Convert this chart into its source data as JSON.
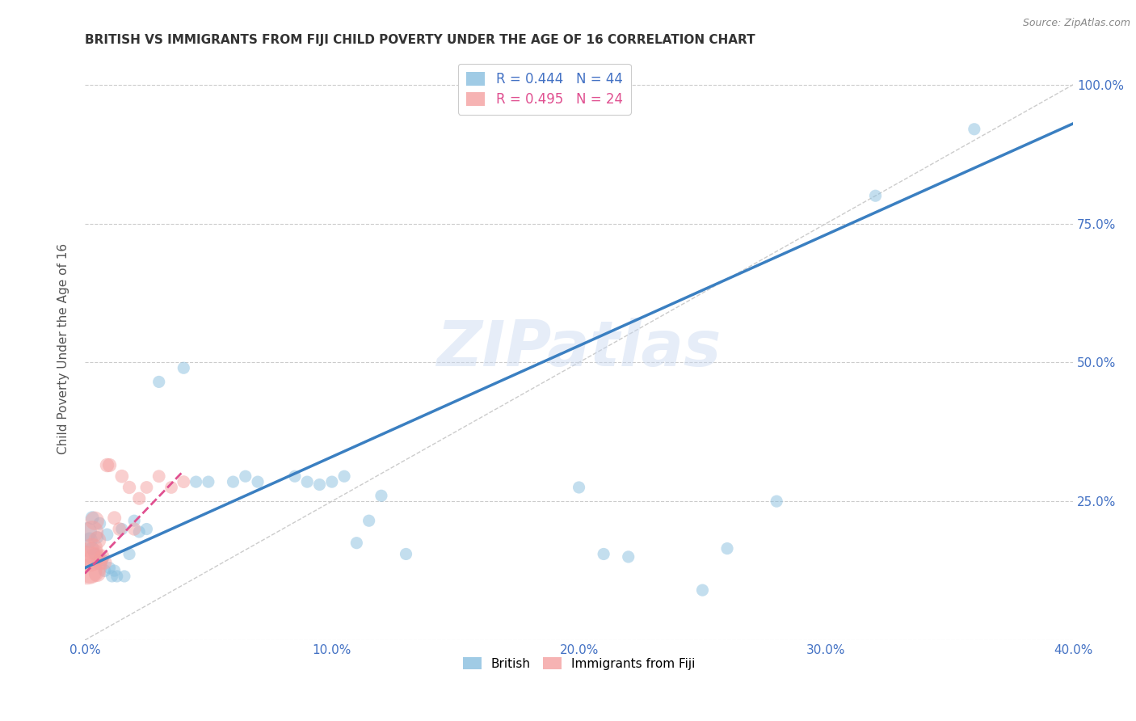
{
  "title": "BRITISH VS IMMIGRANTS FROM FIJI CHILD POVERTY UNDER THE AGE OF 16 CORRELATION CHART",
  "source": "Source: ZipAtlas.com",
  "ylabel": "Child Poverty Under the Age of 16",
  "xlim": [
    0.0,
    0.4
  ],
  "ylim": [
    0.0,
    1.05
  ],
  "xticks": [
    0.0,
    0.05,
    0.1,
    0.15,
    0.2,
    0.25,
    0.3,
    0.35,
    0.4
  ],
  "xticklabels": [
    "0.0%",
    "",
    "10.0%",
    "",
    "20.0%",
    "",
    "30.0%",
    "",
    "40.0%"
  ],
  "yticks": [
    0.0,
    0.25,
    0.5,
    0.75,
    1.0
  ],
  "yticklabels": [
    "",
    "25.0%",
    "50.0%",
    "75.0%",
    "100.0%"
  ],
  "british_color": "#89bfdf",
  "fiji_color": "#f4a0a0",
  "british_R": 0.444,
  "british_N": 44,
  "fiji_R": 0.495,
  "fiji_N": 24,
  "watermark": "ZIPatlas",
  "brit_line_color": "#3a7fc1",
  "fiji_line_color": "#e05090",
  "ref_line_color": "#cccccc",
  "brit_x": [
    0.001,
    0.002,
    0.003,
    0.003,
    0.004,
    0.005,
    0.006,
    0.007,
    0.008,
    0.009,
    0.01,
    0.011,
    0.012,
    0.013,
    0.015,
    0.016,
    0.018,
    0.02,
    0.022,
    0.025,
    0.03,
    0.04,
    0.045,
    0.05,
    0.06,
    0.065,
    0.07,
    0.085,
    0.09,
    0.095,
    0.1,
    0.105,
    0.11,
    0.115,
    0.12,
    0.13,
    0.2,
    0.21,
    0.22,
    0.25,
    0.26,
    0.28,
    0.32,
    0.36
  ],
  "brit_y": [
    0.195,
    0.18,
    0.165,
    0.22,
    0.155,
    0.185,
    0.21,
    0.145,
    0.125,
    0.19,
    0.13,
    0.115,
    0.125,
    0.115,
    0.2,
    0.115,
    0.155,
    0.215,
    0.195,
    0.2,
    0.465,
    0.49,
    0.285,
    0.285,
    0.285,
    0.295,
    0.285,
    0.295,
    0.285,
    0.28,
    0.285,
    0.295,
    0.175,
    0.215,
    0.26,
    0.155,
    0.275,
    0.155,
    0.15,
    0.09,
    0.165,
    0.25,
    0.8,
    0.92
  ],
  "brit_sizes": [
    300,
    200,
    150,
    150,
    130,
    130,
    130,
    130,
    130,
    130,
    120,
    120,
    120,
    120,
    120,
    120,
    120,
    120,
    120,
    120,
    120,
    120,
    120,
    120,
    120,
    120,
    120,
    120,
    120,
    120,
    120,
    120,
    120,
    120,
    120,
    120,
    120,
    120,
    120,
    120,
    120,
    120,
    120,
    120
  ],
  "fiji_x": [
    0.001,
    0.002,
    0.002,
    0.003,
    0.003,
    0.004,
    0.004,
    0.005,
    0.005,
    0.006,
    0.007,
    0.008,
    0.009,
    0.01,
    0.012,
    0.014,
    0.015,
    0.018,
    0.02,
    0.022,
    0.025,
    0.03,
    0.035,
    0.04
  ],
  "fiji_y": [
    0.135,
    0.15,
    0.125,
    0.195,
    0.165,
    0.15,
    0.215,
    0.18,
    0.12,
    0.14,
    0.15,
    0.14,
    0.315,
    0.315,
    0.22,
    0.2,
    0.295,
    0.275,
    0.2,
    0.255,
    0.275,
    0.295,
    0.275,
    0.285
  ],
  "fiji_sizes": [
    1200,
    700,
    500,
    400,
    350,
    300,
    280,
    250,
    230,
    200,
    180,
    170,
    160,
    155,
    150,
    145,
    145,
    140,
    140,
    135,
    130,
    130,
    130,
    130
  ],
  "brit_line_x": [
    0.0,
    0.4
  ],
  "brit_line_y": [
    0.13,
    0.93
  ],
  "fiji_line_x": [
    0.0,
    0.04
  ],
  "fiji_line_y": [
    0.12,
    0.305
  ]
}
